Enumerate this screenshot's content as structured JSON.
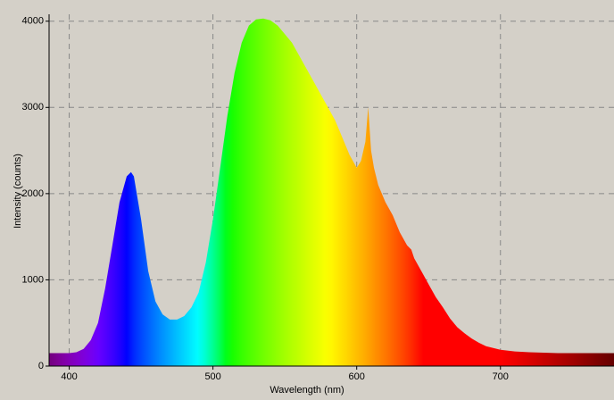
{
  "chart_data": {
    "type": "area",
    "x_label": "Wavelength (nm)",
    "y_label": "Intensity (counts)",
    "xlim": [
      386,
      779
    ],
    "ylim": [
      0,
      4080
    ],
    "xticks": [
      400,
      500,
      600,
      700
    ],
    "yticks": [
      0,
      1000,
      2000,
      3000,
      4000
    ],
    "grid": true,
    "x": [
      386,
      390,
      400,
      405,
      410,
      415,
      420,
      425,
      430,
      435,
      440,
      443,
      445,
      450,
      455,
      460,
      465,
      470,
      475,
      480,
      485,
      490,
      495,
      500,
      505,
      510,
      515,
      520,
      525,
      530,
      535,
      540,
      545,
      550,
      555,
      560,
      565,
      570,
      575,
      580,
      585,
      590,
      595,
      600,
      603,
      606,
      608,
      610,
      612,
      615,
      620,
      625,
      630,
      635,
      638,
      640,
      645,
      650,
      655,
      660,
      665,
      670,
      675,
      680,
      685,
      690,
      700,
      710,
      720,
      740,
      760,
      779
    ],
    "values": [
      150,
      150,
      150,
      160,
      200,
      300,
      500,
      900,
      1400,
      1900,
      2200,
      2250,
      2200,
      1700,
      1100,
      750,
      600,
      540,
      540,
      580,
      680,
      850,
      1200,
      1700,
      2300,
      2900,
      3400,
      3750,
      3950,
      4020,
      4030,
      4010,
      3950,
      3850,
      3750,
      3600,
      3450,
      3300,
      3150,
      3000,
      2850,
      2650,
      2450,
      2300,
      2380,
      2600,
      3000,
      2500,
      2300,
      2100,
      1900,
      1750,
      1550,
      1400,
      1350,
      1250,
      1100,
      950,
      800,
      680,
      550,
      450,
      380,
      320,
      270,
      230,
      190,
      170,
      160,
      150,
      150,
      150
    ]
  }
}
